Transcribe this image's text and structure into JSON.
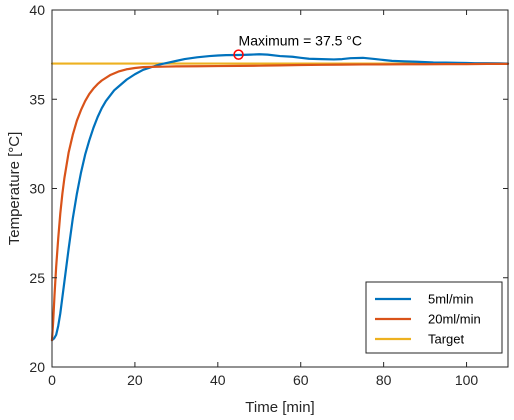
{
  "chart_data": {
    "type": "line",
    "xlabel": "Time [min]",
    "ylabel": "Temperature [°C]",
    "xlim": [
      0,
      110
    ],
    "ylim": [
      20,
      40
    ],
    "xticks": [
      0,
      20,
      40,
      60,
      80,
      100
    ],
    "yticks": [
      20,
      25,
      30,
      35,
      40
    ],
    "grid": false,
    "legend_position": "bottom-right",
    "series": [
      {
        "name": "5ml/min",
        "color": "#0072BD",
        "x": [
          0,
          0.5,
          1,
          1.5,
          2,
          3,
          4,
          5,
          6,
          7,
          8,
          9,
          10,
          11,
          12,
          13,
          14,
          15,
          16,
          18,
          20,
          22,
          24,
          26,
          28,
          30,
          32,
          35,
          38,
          40,
          42,
          45,
          48,
          50,
          52,
          55,
          58,
          60,
          62,
          65,
          68,
          70,
          72,
          75,
          78,
          80,
          82,
          85,
          88,
          90,
          92,
          95,
          98,
          100,
          102,
          105,
          108,
          110
        ],
        "y": [
          21.5,
          21.6,
          21.8,
          22.3,
          23.0,
          24.8,
          26.6,
          28.3,
          29.7,
          30.9,
          31.9,
          32.7,
          33.4,
          34.0,
          34.5,
          34.9,
          35.2,
          35.5,
          35.7,
          36.1,
          36.4,
          36.65,
          36.8,
          36.95,
          37.05,
          37.15,
          37.25,
          37.35,
          37.42,
          37.45,
          37.47,
          37.48,
          37.5,
          37.52,
          37.5,
          37.42,
          37.38,
          37.32,
          37.27,
          37.25,
          37.23,
          37.25,
          37.3,
          37.32,
          37.25,
          37.2,
          37.15,
          37.12,
          37.1,
          37.08,
          37.06,
          37.05,
          37.04,
          37.03,
          37.02,
          37.02,
          37.01,
          37.0
        ]
      },
      {
        "name": "20ml/min",
        "color": "#D95319",
        "x": [
          0,
          0.3,
          0.6,
          1,
          1.5,
          2,
          2.5,
          3,
          4,
          5,
          6,
          7,
          8,
          9,
          10,
          11,
          12,
          14,
          16,
          18,
          20,
          22,
          25,
          28,
          30,
          35,
          40,
          45,
          50,
          55,
          60,
          65,
          70,
          75,
          80,
          85,
          90,
          95,
          100,
          105,
          110
        ],
        "y": [
          21.5,
          22.6,
          24.0,
          25.6,
          27.2,
          28.6,
          29.7,
          30.6,
          32.0,
          33.0,
          33.8,
          34.4,
          34.9,
          35.3,
          35.6,
          35.85,
          36.05,
          36.35,
          36.55,
          36.68,
          36.75,
          36.8,
          36.82,
          36.83,
          36.84,
          36.85,
          36.86,
          36.87,
          36.88,
          36.9,
          36.92,
          36.93,
          36.94,
          36.95,
          36.95,
          36.96,
          36.96,
          36.97,
          36.97,
          36.98,
          36.98
        ]
      },
      {
        "name": "Target",
        "color": "#EDB120",
        "x": [
          0,
          110
        ],
        "y": [
          37.0,
          37.0
        ]
      }
    ],
    "annotations": [
      {
        "text": "Maximum = 37.5 °C",
        "x": 45,
        "y": 37.5,
        "marker": "circle",
        "color": "#FF0000"
      }
    ]
  }
}
